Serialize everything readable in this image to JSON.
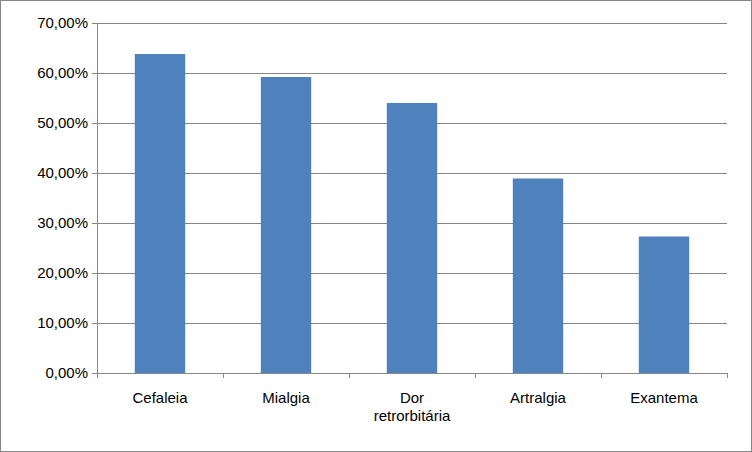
{
  "chart_data": {
    "type": "bar",
    "categories": [
      "Cefaleia",
      "Mialgia",
      "Dor retrorbitária",
      "Artralgia",
      "Exantema"
    ],
    "values": [
      63.8,
      59.2,
      54.0,
      38.9,
      27.3
    ],
    "color": "#4f81bd",
    "ylim": [
      0,
      70
    ],
    "yticks": [
      {
        "value": 0,
        "label": "0,00%"
      },
      {
        "value": 10,
        "label": "10,00%"
      },
      {
        "value": 20,
        "label": "20,00%"
      },
      {
        "value": 30,
        "label": "30,00%"
      },
      {
        "value": 40,
        "label": "40,00%"
      },
      {
        "value": 50,
        "label": "50,00%"
      },
      {
        "value": 60,
        "label": "60,00%"
      },
      {
        "value": 70,
        "label": "70,00%"
      }
    ],
    "grid": true
  }
}
